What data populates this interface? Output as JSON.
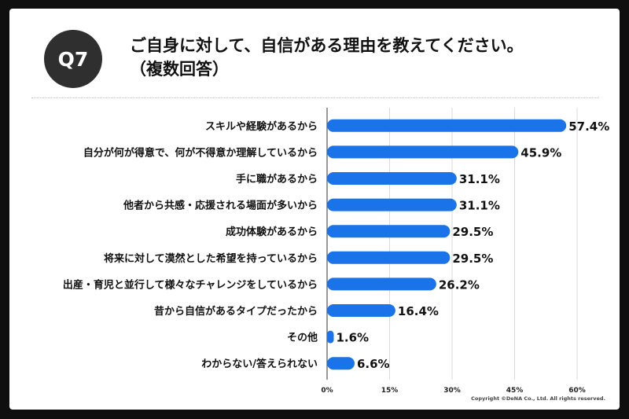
{
  "badge": "Q7",
  "title_line1": "ご自身に対して、自信がある理由を教えてください。",
  "title_line2": "（複数回答）",
  "copyright": "Copyright ©DeNA Co., Ltd. All rights reserved.",
  "colors": {
    "bar": "#1a73e8",
    "badge": "#2f2f2f",
    "frame": "#0f0f0f"
  },
  "chart_data": {
    "type": "bar",
    "orientation": "horizontal",
    "categories": [
      "スキルや経験があるから",
      "自分が何が得意で、何が不得意か理解しているから",
      "手に職があるから",
      "他者から共感・応援される場面が多いから",
      "成功体験があるから",
      "将来に対して漠然とした希望を持っているから",
      "出産・育児と並行して様々なチャレンジをしているから",
      "昔から自信があるタイプだったから",
      "その他",
      "わからない/答えられない"
    ],
    "values": [
      57.4,
      45.9,
      31.1,
      31.1,
      29.5,
      29.5,
      26.2,
      16.4,
      1.6,
      6.6
    ],
    "value_labels": [
      "57.4%",
      "45.9%",
      "31.1%",
      "31.1%",
      "29.5%",
      "29.5%",
      "26.2%",
      "16.4%",
      "1.6%",
      "6.6%"
    ],
    "xlim": [
      0,
      60
    ],
    "xticks": [
      0,
      15,
      30,
      45,
      60
    ],
    "xtick_labels": [
      "0%",
      "15%",
      "30%",
      "45%",
      "60%"
    ],
    "grid": true,
    "legend": "none"
  }
}
